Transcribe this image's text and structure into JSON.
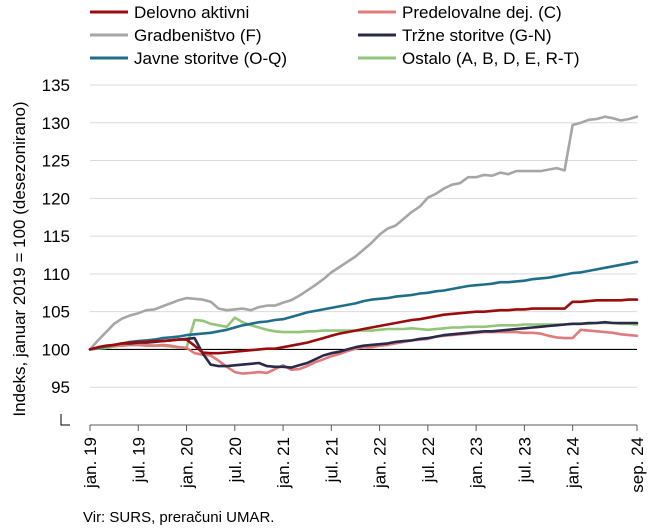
{
  "chart_data": {
    "type": "line",
    "title": "",
    "xlabel": "",
    "ylabel": "Indeks, januar 2019 = 100 (desezonirano)",
    "ylim": [
      90,
      135
    ],
    "yticks": [
      "135",
      "130",
      "125",
      "120",
      "115",
      "110",
      "105",
      "100",
      "95"
    ],
    "yticks_values": [
      135,
      130,
      125,
      120,
      115,
      110,
      105,
      100,
      95
    ],
    "xticks": [
      "jan. 19",
      "jul. 19",
      "jan. 20",
      "jul. 20",
      "jan. 21",
      "jul. 21",
      "jan. 22",
      "jul. 22",
      "jan. 23",
      "jul. 23",
      "jan. 24",
      "sep. 24"
    ],
    "xticks_index": [
      0,
      6,
      12,
      18,
      24,
      30,
      36,
      42,
      48,
      54,
      60,
      68
    ],
    "x_start": "2019-01",
    "x_end": "2024-09",
    "legend_placement": "top",
    "reference_line": 100,
    "series": [
      {
        "name": "Delovno aktivni",
        "color": "#9b0d0d",
        "values": [
          100,
          100.3,
          100.5,
          100.6,
          100.8,
          100.9,
          101.0,
          101.0,
          101.1,
          101.1,
          101.2,
          101.3,
          101.3,
          100.5,
          99.6,
          99.5,
          99.5,
          99.6,
          99.7,
          99.8,
          99.9,
          100.0,
          100.1,
          100.1,
          100.3,
          100.5,
          100.7,
          100.9,
          101.2,
          101.5,
          101.8,
          102.1,
          102.3,
          102.5,
          102.7,
          102.9,
          103.1,
          103.3,
          103.5,
          103.7,
          103.9,
          104.0,
          104.2,
          104.4,
          104.6,
          104.7,
          104.8,
          104.9,
          105.0,
          105.0,
          105.1,
          105.2,
          105.2,
          105.3,
          105.3,
          105.4,
          105.4,
          105.4,
          105.4,
          105.4,
          106.3,
          106.3,
          106.4,
          106.5,
          106.5,
          106.5,
          106.5,
          106.6,
          106.6
        ]
      },
      {
        "name": "Predelovalne dej. (C)",
        "color": "#e07b7b",
        "values": [
          100,
          100.2,
          100.4,
          100.5,
          100.5,
          100.6,
          100.6,
          100.5,
          100.5,
          100.6,
          100.5,
          100.3,
          100.2,
          99.5,
          99.3,
          99.2,
          98.5,
          97.7,
          97.0,
          96.8,
          96.9,
          97.0,
          96.9,
          97.4,
          97.9,
          97.3,
          97.4,
          97.8,
          98.3,
          98.7,
          99.1,
          99.4,
          99.8,
          100.1,
          100.3,
          100.3,
          100.5,
          100.6,
          100.8,
          101.0,
          101.2,
          101.3,
          101.4,
          101.7,
          101.8,
          101.9,
          102.0,
          102.1,
          102.2,
          102.3,
          102.3,
          102.3,
          102.3,
          102.3,
          102.2,
          102.2,
          102.1,
          101.8,
          101.6,
          101.5,
          101.5,
          102.6,
          102.5,
          102.4,
          102.3,
          102.2,
          102.0,
          101.9,
          101.8
        ]
      },
      {
        "name": "Gradbeništvo (F)",
        "color": "#a6a6a6",
        "values": [
          100,
          101.2,
          102.3,
          103.4,
          104.1,
          104.5,
          104.8,
          105.2,
          105.3,
          105.7,
          106.1,
          106.5,
          106.8,
          106.7,
          106.6,
          106.3,
          105.4,
          105.2,
          105.3,
          105.4,
          105.2,
          105.6,
          105.8,
          105.8,
          106.2,
          106.5,
          107.1,
          107.8,
          108.5,
          109.3,
          110.2,
          110.9,
          111.6,
          112.3,
          113.2,
          114.1,
          115.2,
          116.0,
          116.4,
          117.3,
          118.2,
          118.9,
          120.1,
          120.6,
          121.3,
          121.8,
          122.0,
          122.8,
          122.8,
          123.1,
          123.0,
          123.4,
          123.2,
          123.6,
          123.6,
          123.6,
          123.6,
          123.8,
          124.0,
          123.7,
          129.7,
          130.0,
          130.4,
          130.5,
          130.8,
          130.6,
          130.3,
          130.5,
          130.8
        ]
      },
      {
        "name": "Tržne storitve (G-N)",
        "color": "#2a2a4a",
        "values": [
          100,
          100.2,
          100.4,
          100.6,
          100.8,
          100.8,
          100.9,
          100.9,
          101.0,
          101.1,
          101.2,
          101.3,
          101.4,
          101.5,
          99.5,
          98.0,
          97.8,
          97.8,
          97.9,
          98.0,
          98.1,
          98.2,
          97.8,
          97.7,
          97.7,
          97.6,
          97.9,
          98.2,
          98.7,
          99.2,
          99.5,
          99.7,
          100.0,
          100.3,
          100.5,
          100.6,
          100.7,
          100.8,
          101.0,
          101.1,
          101.2,
          101.4,
          101.5,
          101.7,
          101.9,
          102.0,
          102.1,
          102.2,
          102.3,
          102.4,
          102.4,
          102.5,
          102.6,
          102.7,
          102.8,
          102.9,
          103.0,
          103.1,
          103.2,
          103.3,
          103.4,
          103.4,
          103.5,
          103.5,
          103.6,
          103.5,
          103.5,
          103.5,
          103.5
        ]
      },
      {
        "name": "Javne storitve (O-Q)",
        "color": "#1f6f8b",
        "values": [
          100,
          100.2,
          100.4,
          100.6,
          100.8,
          101.0,
          101.1,
          101.2,
          101.3,
          101.5,
          101.6,
          101.7,
          101.9,
          102.0,
          102.1,
          102.2,
          102.4,
          102.6,
          102.9,
          103.2,
          103.4,
          103.6,
          103.7,
          103.9,
          104.0,
          104.3,
          104.6,
          104.9,
          105.1,
          105.3,
          105.5,
          105.7,
          105.9,
          106.1,
          106.4,
          106.6,
          106.7,
          106.8,
          107.0,
          107.1,
          107.2,
          107.4,
          107.5,
          107.7,
          107.8,
          108.0,
          108.2,
          108.4,
          108.5,
          108.6,
          108.7,
          108.9,
          108.9,
          109.0,
          109.1,
          109.3,
          109.4,
          109.5,
          109.7,
          109.9,
          110.1,
          110.2,
          110.4,
          110.6,
          110.8,
          111.0,
          111.2,
          111.4,
          111.6
        ]
      },
      {
        "name": "Ostalo (A, B, D, E, R-T)",
        "color": "#92c47a",
        "values": [
          100,
          100.1,
          100.2,
          100.4,
          100.5,
          100.6,
          100.6,
          100.6,
          100.5,
          100.5,
          100.4,
          100.3,
          100.2,
          103.9,
          103.8,
          103.4,
          103.2,
          103.0,
          104.2,
          103.6,
          103.2,
          102.9,
          102.6,
          102.4,
          102.3,
          102.3,
          102.3,
          102.4,
          102.4,
          102.5,
          102.5,
          102.5,
          102.5,
          102.5,
          102.5,
          102.5,
          102.6,
          102.7,
          102.7,
          102.7,
          102.8,
          102.7,
          102.6,
          102.7,
          102.8,
          102.9,
          102.9,
          103.0,
          103.0,
          103.0,
          103.1,
          103.2,
          103.2,
          103.2,
          103.3,
          103.3,
          103.3,
          103.3,
          103.3,
          103.3,
          103.4,
          103.4,
          103.4,
          103.5,
          103.5,
          103.5,
          103.4,
          103.4,
          103.3
        ]
      }
    ]
  },
  "source": "Vir: SURS, preračuni UMAR."
}
